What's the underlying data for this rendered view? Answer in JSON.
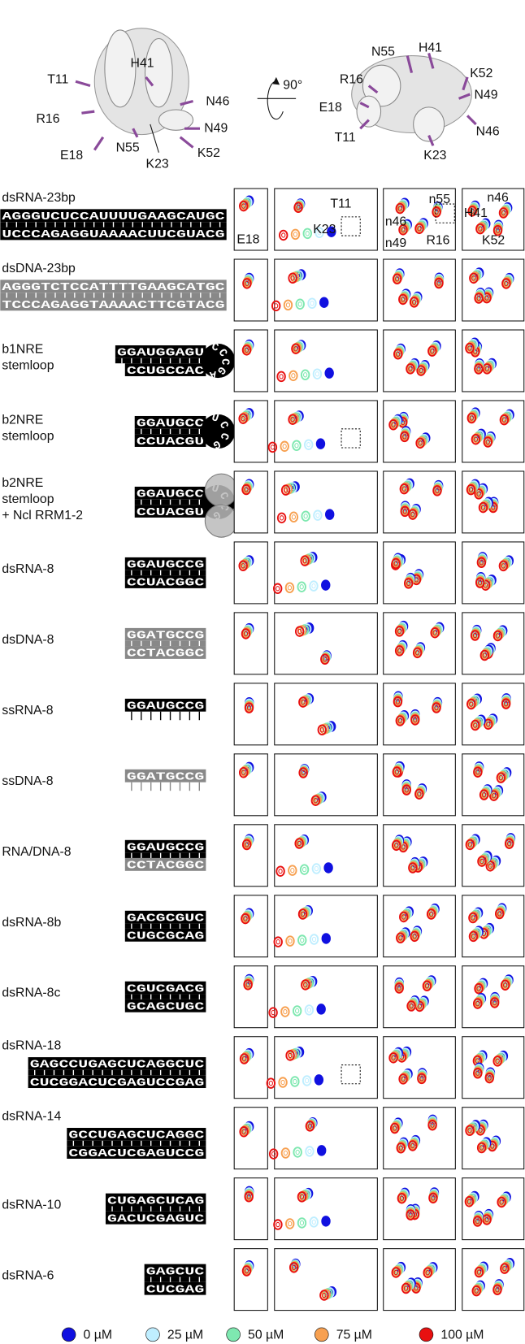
{
  "structure": {
    "left_labels": [
      "T11",
      "H41",
      "R16",
      "N46",
      "E18",
      "N55",
      "N49",
      "K23",
      "K52"
    ],
    "rotation": "90°",
    "right_labels": [
      "N55",
      "H41",
      "R16",
      "K52",
      "E18",
      "N49",
      "N46",
      "T11",
      "K23"
    ]
  },
  "panel_labels": [
    "E18",
    "T11",
    "K23",
    "n55",
    "n46",
    "n49",
    "R16",
    "n46",
    "H41",
    "K52"
  ],
  "rows": [
    {
      "name": [
        "dsRNA-23bp"
      ],
      "top": "AGGGUCUCCAUUUUGAAGCAUGC",
      "bottom": "UCCCAGAGGUAAAACUUCGUACG",
      "top_color": "#000000",
      "bottom_color": "#000000"
    },
    {
      "name": [
        "dsDNA-23bp"
      ],
      "top": "AGGGTCTCCATTTTGAAGCATGC",
      "bottom": "TCCCAGAGGTAAAACTTCGTACG",
      "top_color": "#888888",
      "bottom_color": "#888888"
    },
    {
      "name": [
        "b1NRE",
        "stemloop"
      ],
      "top": "GGAUGGAGU",
      "bottom": "CCUGCCAC",
      "loop": "CCCGAAC",
      "top_color": "#000000",
      "bottom_color": "#000000"
    },
    {
      "name": [
        "b2NRE",
        "stemloop"
      ],
      "top": "GGAUGCC",
      "bottom": "CCUACGU",
      "loop": "UCCGAG",
      "top_color": "#000000",
      "bottom_color": "#000000"
    },
    {
      "name": [
        "b2NRE",
        "stemloop",
        "+ Ncl RRM1-2"
      ],
      "top": "GGAUGCC",
      "bottom": "CCUACGU",
      "loop": "UCCGAG",
      "top_color": "#000000",
      "bottom_color": "#000000"
    },
    {
      "name": [
        "dsRNA-8"
      ],
      "top": "GGAUGCCG",
      "bottom": "CCUACGGC",
      "top_color": "#000000",
      "bottom_color": "#000000"
    },
    {
      "name": [
        "dsDNA-8"
      ],
      "top": "GGATGCCG",
      "bottom": "CCTACGGC",
      "top_color": "#888888",
      "bottom_color": "#888888"
    },
    {
      "name": [
        "ssRNA-8"
      ],
      "top": "GGAUGCCG",
      "top_color": "#000000"
    },
    {
      "name": [
        "ssDNA-8"
      ],
      "top": "GGATGCCG",
      "top_color": "#888888"
    },
    {
      "name": [
        "RNA/DNA-8"
      ],
      "top": "GGAUGCCG",
      "bottom": "CCTACGGC",
      "top_color": "#000000",
      "bottom_color": "#888888"
    },
    {
      "name": [
        "dsRNA-8b"
      ],
      "top": "GACGCGUC",
      "bottom": "CUGCGCAG",
      "top_color": "#000000",
      "bottom_color": "#000000"
    },
    {
      "name": [
        "dsRNA-8c"
      ],
      "top": "CGUCGACG",
      "bottom": "GCAGCUGC",
      "top_color": "#000000",
      "bottom_color": "#000000"
    },
    {
      "name": [
        "dsRNA-18"
      ],
      "top": "GAGCCUGAGCUCAGGCUC",
      "bottom": "CUCGGACUCGAGUCCGAG",
      "top_color": "#000000",
      "bottom_color": "#000000"
    },
    {
      "name": [
        "dsRNA-14"
      ],
      "top": "GCCUGAGCUCAGGC",
      "bottom": "CGGACUCGAGUCCG",
      "top_color": "#000000",
      "bottom_color": "#000000"
    },
    {
      "name": [
        "dsRNA-10"
      ],
      "top": "CUGAGCUCAG",
      "bottom": "GACUCGAGUC",
      "top_color": "#000000",
      "bottom_color": "#000000"
    },
    {
      "name": [
        "dsRNA-6"
      ],
      "top": "GAGCUC",
      "bottom": "CUCGAG",
      "top_color": "#000000",
      "bottom_color": "#000000"
    }
  ],
  "legend": [
    {
      "label": "0 µM",
      "color": "#1010e0"
    },
    {
      "label": "25 µM",
      "color": "#bfeeff"
    },
    {
      "label": "50 µM",
      "color": "#7ee8b0"
    },
    {
      "label": "75 µM",
      "color": "#f7a050"
    },
    {
      "label": "100 µM",
      "color": "#e81010"
    }
  ]
}
